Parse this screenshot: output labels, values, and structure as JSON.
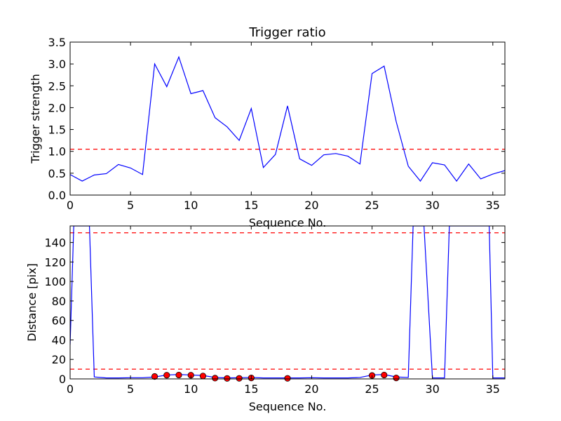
{
  "chart_data": [
    {
      "type": "line",
      "title": "Trigger ratio",
      "xlabel": "Sequence No.",
      "ylabel": "Trigger strength",
      "xlim": [
        0,
        36
      ],
      "ylim": [
        0,
        3.5
      ],
      "xticks": [
        "0",
        "5",
        "10",
        "15",
        "20",
        "25",
        "30",
        "35"
      ],
      "yticks": [
        "0.0",
        "0.5",
        "1.0",
        "1.5",
        "2.0",
        "2.5",
        "3.0",
        "3.5"
      ],
      "grid": false,
      "colors": {
        "series": "#0000ff",
        "threshold": "#ff0000"
      },
      "series": [
        {
          "x": [
            0,
            1,
            2,
            3,
            4,
            5,
            6,
            7,
            8,
            9,
            10,
            11,
            12,
            13,
            14,
            15,
            16,
            17,
            18,
            19,
            20,
            21,
            22,
            23,
            24,
            25,
            26,
            27,
            28,
            29,
            30,
            31,
            32,
            33,
            34,
            35,
            36
          ],
          "values": [
            0.47,
            0.32,
            0.46,
            0.49,
            0.7,
            0.62,
            0.47,
            3.0,
            2.48,
            3.16,
            2.32,
            2.39,
            1.77,
            1.56,
            1.25,
            1.98,
            0.63,
            0.93,
            2.04,
            0.83,
            0.68,
            0.92,
            0.95,
            0.89,
            0.71,
            2.78,
            2.95,
            1.68,
            0.66,
            0.32,
            0.74,
            0.69,
            0.32,
            0.71,
            0.37,
            0.48,
            0.56
          ]
        }
      ],
      "hlines": [
        1.05
      ]
    },
    {
      "type": "line",
      "title": "",
      "xlabel": "Sequence No.",
      "ylabel": "Distance [pix]",
      "xlim": [
        0,
        36
      ],
      "ylim": [
        0,
        157
      ],
      "xticks": [
        "0",
        "5",
        "10",
        "15",
        "20",
        "25",
        "30",
        "35"
      ],
      "yticks": [
        "0",
        "20",
        "40",
        "60",
        "80",
        "100",
        "120",
        "140"
      ],
      "grid": false,
      "colors": {
        "series": "#0000ff",
        "threshold": "#ff0000",
        "markers": "#ff0000"
      },
      "series": [
        {
          "x": [
            0,
            0.3,
            1.6,
            2,
            3,
            4,
            5,
            6,
            7,
            8,
            9,
            10,
            11,
            12,
            13,
            14,
            15,
            16,
            17,
            18,
            19,
            20,
            21,
            22,
            23,
            24,
            25,
            26,
            27,
            28,
            28.4,
            29.3,
            30,
            31,
            31.4,
            34.7,
            35,
            36
          ],
          "values": [
            35,
            157,
            157,
            2,
            1,
            1,
            1.2,
            1.2,
            2,
            4,
            4.5,
            4,
            3.5,
            1.5,
            1,
            1.2,
            1.5,
            1,
            1,
            1,
            1,
            1.2,
            1,
            1,
            1,
            1.5,
            4,
            4.5,
            2,
            1.5,
            157,
            157,
            1,
            1,
            157,
            157,
            1,
            1
          ]
        }
      ],
      "markers": {
        "x": [
          7,
          8,
          9,
          10,
          11,
          12,
          13,
          14,
          15,
          18,
          25,
          26,
          27
        ],
        "values": [
          2.5,
          3.8,
          4.0,
          3.8,
          3.0,
          0.8,
          0.5,
          0.6,
          1.0,
          0.6,
          3.5,
          4.0,
          1.0
        ]
      },
      "hlines": [
        150,
        10
      ]
    }
  ]
}
